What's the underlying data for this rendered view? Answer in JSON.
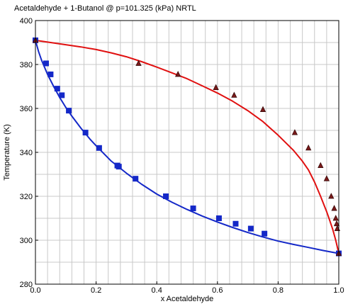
{
  "chart_data": {
    "type": "line",
    "title": "Acetaldehyde + 1-Butanol @ p=101.325 (kPa) NRTL",
    "xlabel": "x Acetaldehyde",
    "ylabel": "Temperature (K)",
    "xlim": [
      0,
      1
    ],
    "ylim": [
      280,
      400
    ],
    "x_ticks": [
      0,
      0.2,
      0.4,
      0.6,
      0.8,
      1
    ],
    "x_tick_labels": [
      "0.0",
      "0.2",
      "0.4",
      "0.6",
      "0.8",
      "1.0"
    ],
    "y_ticks": [
      280,
      300,
      320,
      340,
      360,
      380,
      400
    ],
    "y_tick_labels": [
      "280",
      "300",
      "320",
      "340",
      "360",
      "380",
      "400"
    ],
    "grid": true,
    "colors": {
      "bubble": "#1428c8",
      "dew": "#e01010",
      "marker_edge": "#000000"
    },
    "series": [
      {
        "role": "bubble-curve",
        "color": "#1428c8",
        "x": [
          0,
          0.01,
          0.02,
          0.04,
          0.06,
          0.08,
          0.1,
          0.12,
          0.15,
          0.18,
          0.2,
          0.25,
          0.3,
          0.35,
          0.4,
          0.45,
          0.5,
          0.55,
          0.6,
          0.65,
          0.7,
          0.75,
          0.8,
          0.85,
          0.9,
          0.95,
          1.0
        ],
        "y": [
          391,
          386,
          382,
          375.5,
          370,
          365,
          360.5,
          356.5,
          351,
          346,
          343,
          336,
          330.5,
          325.5,
          321,
          317.3,
          314,
          311,
          308.3,
          305.8,
          303.5,
          301.5,
          299.6,
          298.1,
          296.7,
          295.3,
          294
        ]
      },
      {
        "role": "dew-curve",
        "color": "#e01010",
        "x": [
          0,
          0.05,
          0.1,
          0.15,
          0.2,
          0.25,
          0.3,
          0.35,
          0.4,
          0.45,
          0.5,
          0.55,
          0.6,
          0.65,
          0.7,
          0.75,
          0.8,
          0.85,
          0.88,
          0.9,
          0.92,
          0.94,
          0.96,
          0.97,
          0.98,
          0.99,
          1.0
        ],
        "y": [
          391,
          390,
          389,
          388,
          386.8,
          385.3,
          383.5,
          381.3,
          378.8,
          376.2,
          373.5,
          370.3,
          367,
          363.3,
          359,
          354,
          347.8,
          341,
          336,
          332,
          326.5,
          320,
          313,
          309,
          305,
          300,
          294
        ]
      },
      {
        "role": "bubble-points",
        "marker": "square",
        "color": "#1428c8",
        "x": [
          0.0,
          0.035,
          0.05,
          0.072,
          0.087,
          0.11,
          0.165,
          0.21,
          0.27,
          0.275,
          0.33,
          0.43,
          0.52,
          0.605,
          0.66,
          0.71,
          0.755,
          1.0
        ],
        "y": [
          391,
          380.5,
          375.5,
          369,
          366,
          359,
          349,
          342,
          334,
          333.5,
          328,
          320,
          314.5,
          310,
          307.5,
          305.3,
          303,
          294
        ]
      },
      {
        "role": "dew-points",
        "marker": "triangle",
        "color": "#e01010",
        "x": [
          0.0,
          0.34,
          0.47,
          0.595,
          0.655,
          0.75,
          0.855,
          0.9,
          0.94,
          0.96,
          0.975,
          0.985,
          0.99,
          0.993,
          0.995,
          1.0
        ],
        "y": [
          391,
          380.5,
          375.5,
          369.5,
          366,
          359.5,
          349,
          342,
          334,
          328,
          320,
          314.5,
          310,
          307.5,
          305.3,
          294
        ]
      }
    ]
  }
}
